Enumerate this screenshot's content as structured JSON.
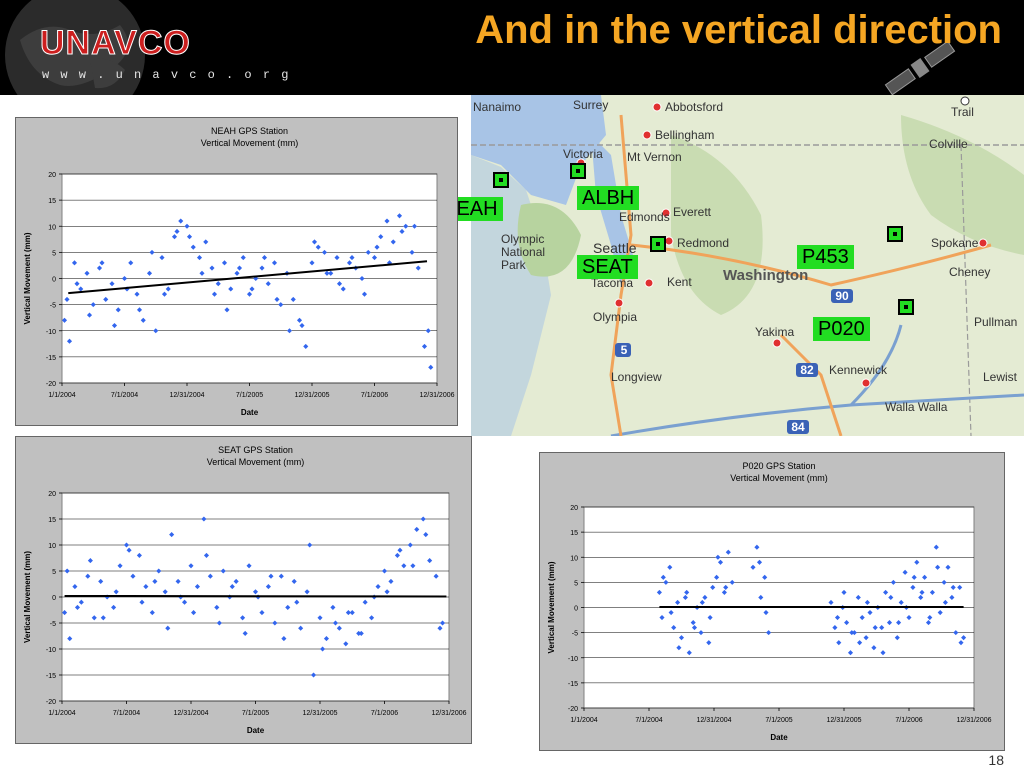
{
  "slide": {
    "title": "And in the vertical direction",
    "page_number": "18",
    "logo": {
      "text": "UNAVCO",
      "url": "w w w . u n a v c o . o r g"
    },
    "accent_color": "#f5a623",
    "header_color": "#000000"
  },
  "map": {
    "station_labels": [
      "NEAH",
      "ALBH",
      "SEAT",
      "P453",
      "P020"
    ],
    "place_names": [
      "Nanaimo",
      "Surrey",
      "Abbotsford",
      "Trail",
      "Bellingham",
      "Victoria",
      "Mt Vernon",
      "Colville",
      "Edmonds",
      "Everett",
      "Olympic National Park",
      "Seattle",
      "Redmond",
      "Spokane",
      "Cheney",
      "Tacoma",
      "Kent",
      "Washington",
      "Olympia",
      "Yakima",
      "Pullman",
      "Longview",
      "Kennewick",
      "Lewist",
      "Walla Walla"
    ],
    "highway_shields": [
      "5",
      "90",
      "82",
      "84"
    ],
    "label_color": "#22dd22"
  },
  "chart_data": [
    {
      "type": "scatter",
      "title": "NEAH GPS Station",
      "subtitle": "Vertical Movement (mm)",
      "xlabel": "Date",
      "ylabel": "Vertical Movement (mm)",
      "x_ticks": [
        "1/1/2004",
        "7/1/2004",
        "12/31/2004",
        "7/1/2005",
        "12/31/2005",
        "7/1/2006",
        "12/31/2006"
      ],
      "x_tick_years": [
        2004.0,
        2004.5,
        2005.0,
        2005.5,
        2006.0,
        2006.5,
        2007.0
      ],
      "xlim": [
        2004.0,
        2007.0
      ],
      "ylim": [
        -20,
        20
      ],
      "y_ticks": [
        20,
        15,
        10,
        5,
        0,
        -5,
        -10,
        -15,
        -20
      ],
      "grid": true,
      "marker_color": "#3366ee",
      "trend_line": {
        "x": [
          2004.05,
          2006.92
        ],
        "y": [
          -2.8,
          3.3
        ]
      },
      "series": [
        {
          "x": [
            2004.02,
            2004.06,
            2004.1,
            2004.15,
            2004.2,
            2004.25,
            2004.3,
            2004.35,
            2004.4,
            2004.45,
            2004.5,
            2004.55,
            2004.6,
            2004.65,
            2004.7,
            2004.75,
            2004.8,
            2004.85,
            2004.9,
            2004.95,
            2005.0,
            2005.05,
            2005.1,
            2005.15,
            2005.2,
            2005.25,
            2005.3,
            2005.35,
            2005.4,
            2005.45,
            2005.5,
            2005.55,
            2005.6,
            2005.65,
            2005.7,
            2005.75,
            2005.8,
            2005.85,
            2005.9,
            2005.95,
            2006.0,
            2006.05,
            2006.1,
            2006.15,
            2006.2,
            2006.25,
            2006.3,
            2006.35,
            2006.4,
            2006.45,
            2006.5,
            2006.55,
            2006.6,
            2006.65,
            2006.7,
            2006.75,
            2006.8,
            2006.85,
            2006.9,
            2006.95,
            2004.04,
            2004.12,
            2004.22,
            2004.32,
            2004.42,
            2004.52,
            2004.62,
            2004.72,
            2004.82,
            2004.92,
            2005.02,
            2005.12,
            2005.22,
            2005.32,
            2005.42,
            2005.52,
            2005.62,
            2005.72,
            2005.82,
            2005.92,
            2006.02,
            2006.12,
            2006.22,
            2006.32,
            2006.42,
            2006.52,
            2006.62,
            2006.72,
            2006.82,
            2006.93
          ],
          "y": [
            -8,
            -12,
            3,
            -2,
            1,
            -5,
            2,
            -4,
            -1,
            -6,
            0,
            3,
            -3,
            -8,
            1,
            -10,
            4,
            -2,
            8,
            11,
            10,
            6,
            4,
            7,
            2,
            -1,
            3,
            -2,
            1,
            4,
            -3,
            0,
            2,
            -1,
            3,
            -5,
            1,
            -4,
            -8,
            -13,
            3,
            6,
            5,
            1,
            4,
            -2,
            3,
            2,
            0,
            5,
            4,
            8,
            11,
            7,
            12,
            10,
            5,
            2,
            -13,
            -17,
            -4,
            -1,
            -7,
            3,
            -9,
            -2,
            -6,
            5,
            -3,
            9,
            8,
            1,
            -3,
            -6,
            2,
            -2,
            4,
            -4,
            -10,
            -9,
            7,
            1,
            -1,
            4,
            -3,
            6,
            3,
            9,
            10,
            -10
          ]
        }
      ]
    },
    {
      "type": "scatter",
      "title": "SEAT GPS Station",
      "subtitle": "Vertical Movement (mm)",
      "xlabel": "Date",
      "ylabel": "Vertical Movement (mm)",
      "x_ticks": [
        "1/1/2004",
        "7/1/2004",
        "12/31/2004",
        "7/1/2005",
        "12/31/2005",
        "7/1/2006",
        "12/31/2006"
      ],
      "x_tick_years": [
        2004.0,
        2004.5,
        2005.0,
        2005.5,
        2006.0,
        2006.5,
        2007.0
      ],
      "xlim": [
        2004.0,
        2007.0
      ],
      "ylim": [
        -20,
        20
      ],
      "y_ticks": [
        20,
        15,
        10,
        5,
        0,
        -5,
        -10,
        -15,
        -20
      ],
      "grid": true,
      "marker_color": "#3366ee",
      "trend_line": {
        "x": [
          2004.02,
          2006.98
        ],
        "y": [
          0.2,
          0.1
        ]
      },
      "series": [
        {
          "x": [
            2004.02,
            2004.06,
            2004.1,
            2004.15,
            2004.2,
            2004.25,
            2004.3,
            2004.35,
            2004.4,
            2004.45,
            2004.5,
            2004.55,
            2004.6,
            2004.65,
            2004.7,
            2004.75,
            2004.8,
            2004.85,
            2004.9,
            2004.95,
            2005.0,
            2005.05,
            2005.1,
            2005.15,
            2005.2,
            2005.25,
            2005.3,
            2005.35,
            2005.4,
            2005.45,
            2005.5,
            2005.55,
            2005.6,
            2005.65,
            2005.7,
            2005.75,
            2005.8,
            2005.85,
            2005.9,
            2005.95,
            2006.0,
            2006.05,
            2006.1,
            2006.15,
            2006.2,
            2006.25,
            2006.3,
            2006.35,
            2006.4,
            2006.45,
            2006.5,
            2006.55,
            2006.6,
            2006.65,
            2006.7,
            2006.75,
            2006.8,
            2006.85,
            2006.9,
            2006.95,
            2004.04,
            2004.12,
            2004.22,
            2004.32,
            2004.42,
            2004.52,
            2004.62,
            2004.72,
            2004.82,
            2004.92,
            2005.02,
            2005.12,
            2005.22,
            2005.32,
            2005.42,
            2005.52,
            2005.62,
            2005.72,
            2005.82,
            2005.92,
            2006.02,
            2006.12,
            2006.22,
            2006.32,
            2006.42,
            2006.52,
            2006.62,
            2006.72,
            2006.82,
            2006.93
          ],
          "y": [
            -3,
            -8,
            2,
            -1,
            4,
            -4,
            3,
            0,
            -2,
            6,
            10,
            4,
            8,
            2,
            -3,
            5,
            1,
            12,
            3,
            -1,
            6,
            2,
            15,
            4,
            -2,
            5,
            0,
            3,
            -4,
            6,
            1,
            -3,
            2,
            -5,
            4,
            -2,
            3,
            -6,
            1,
            -15,
            -4,
            -8,
            -2,
            -6,
            -9,
            -3,
            -7,
            -1,
            -4,
            2,
            5,
            3,
            8,
            6,
            10,
            13,
            15,
            7,
            4,
            -5,
            5,
            -2,
            7,
            -4,
            1,
            9,
            -1,
            3,
            -6,
            0,
            -3,
            8,
            -5,
            2,
            -7,
            0,
            4,
            -8,
            -1,
            10,
            -10,
            -5,
            -3,
            -7,
            0,
            1,
            9,
            6,
            12,
            -6
          ]
        }
      ]
    },
    {
      "type": "scatter",
      "title": "P020 GPS Station",
      "subtitle": "Vertical Movement (mm)",
      "xlabel": "Date",
      "ylabel": "Vertical Movement (mm)",
      "x_ticks": [
        "1/1/2004",
        "7/1/2004",
        "12/31/2004",
        "7/1/2005",
        "12/31/2005",
        "7/1/2006",
        "12/31/2006"
      ],
      "x_tick_years": [
        2004.0,
        2004.5,
        2005.0,
        2005.5,
        2006.0,
        2006.5,
        2007.0
      ],
      "xlim": [
        2004.0,
        2007.0
      ],
      "ylim": [
        -20,
        20
      ],
      "y_ticks": [
        20,
        15,
        10,
        5,
        0,
        -5,
        -10,
        -15,
        -20
      ],
      "grid": true,
      "marker_color": "#3366ee",
      "trend_line": {
        "x": [
          2004.58,
          2006.92
        ],
        "y": [
          0.1,
          0.1
        ]
      },
      "series": [
        {
          "x": [
            2004.58,
            2004.6,
            2004.63,
            2004.66,
            2004.69,
            2004.72,
            2004.75,
            2004.78,
            2004.81,
            2004.84,
            2004.87,
            2004.9,
            2004.93,
            2004.96,
            2004.99,
            2005.02,
            2005.05,
            2005.08,
            2005.11,
            2005.14,
            2005.3,
            2005.33,
            2005.36,
            2005.39,
            2005.42,
            2005.9,
            2005.93,
            2005.96,
            2005.99,
            2006.02,
            2006.05,
            2006.08,
            2006.11,
            2006.14,
            2006.17,
            2006.2,
            2006.23,
            2006.26,
            2006.29,
            2006.32,
            2006.35,
            2006.38,
            2006.41,
            2006.44,
            2006.47,
            2006.5,
            2006.53,
            2006.56,
            2006.59,
            2006.62,
            2006.65,
            2006.68,
            2006.71,
            2006.74,
            2006.77,
            2006.8,
            2006.83,
            2006.86,
            2006.89,
            2006.92,
            2004.61,
            2004.67,
            2004.73,
            2004.79,
            2004.85,
            2004.91,
            2004.97,
            2005.03,
            2005.09,
            2005.35,
            2005.4,
            2005.95,
            2006.0,
            2006.06,
            2006.12,
            2006.18,
            2006.24,
            2006.3,
            2006.36,
            2006.42,
            2006.48,
            2006.54,
            2006.6,
            2006.66,
            2006.72,
            2006.78,
            2006.84,
            2006.9
          ],
          "y": [
            3,
            -2,
            5,
            8,
            -4,
            1,
            -6,
            2,
            -9,
            -3,
            0,
            -5,
            2,
            -7,
            4,
            6,
            9,
            3,
            11,
            5,
            8,
            12,
            2,
            6,
            -5,
            1,
            -4,
            -7,
            0,
            -3,
            -9,
            -5,
            2,
            -2,
            -6,
            -1,
            -8,
            0,
            -4,
            3,
            -3,
            5,
            -6,
            1,
            7,
            -2,
            4,
            9,
            2,
            6,
            -3,
            3,
            12,
            -1,
            5,
            8,
            2,
            -5,
            4,
            -6,
            6,
            -1,
            -8,
            3,
            -4,
            1,
            -2,
            10,
            4,
            9,
            -1,
            -2,
            3,
            -5,
            -7,
            1,
            -4,
            -9,
            2,
            -3,
            0,
            6,
            3,
            -2,
            8,
            1,
            4,
            -7
          ]
        }
      ]
    }
  ]
}
